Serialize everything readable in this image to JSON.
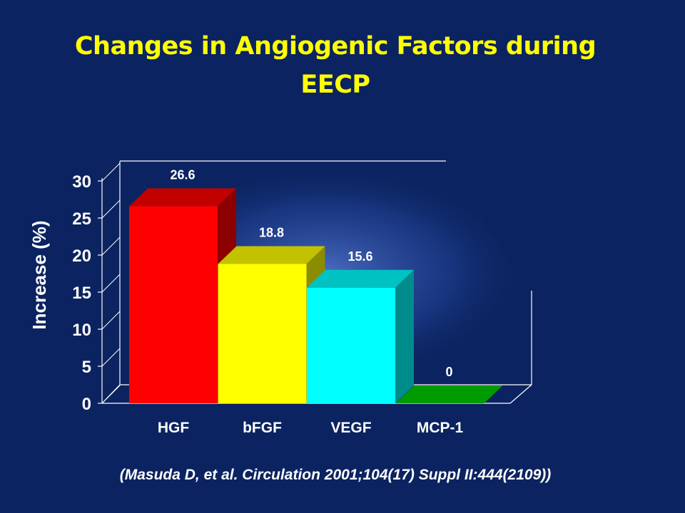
{
  "slide": {
    "title": "Changes in Angiogenic Factors during EECP",
    "citation": "(Masuda D, et al.  Circulation 2001;104(17) Suppl II:444(2109))"
  },
  "colors": {
    "background": "#0b2360",
    "title": "#ffff00"
  },
  "chart_data": {
    "type": "bar",
    "style": "3d-bar",
    "title": "Changes in Angiogenic Factors during EECP",
    "xlabel": "",
    "ylabel": "Increase (%)",
    "ylim": [
      0,
      30
    ],
    "yticks": [
      0,
      5,
      10,
      15,
      20,
      25,
      30
    ],
    "categories": [
      "HGF",
      "bFGF",
      "VEGF",
      "MCP-1"
    ],
    "values": [
      26.6,
      18.8,
      15.6,
      0
    ],
    "data_labels": [
      "26.6",
      "18.8",
      "15.6",
      "0"
    ],
    "bar_colors": [
      "#ff0000",
      "#ffff00",
      "#00ffff",
      "#00cc00"
    ],
    "legend": "none",
    "grid": false
  }
}
